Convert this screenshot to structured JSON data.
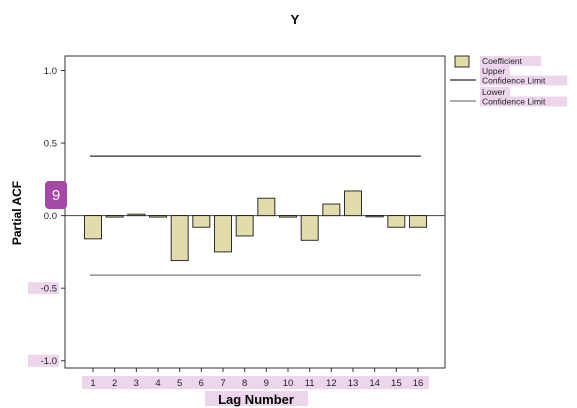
{
  "annotation_badge": "9",
  "colors": {
    "bar_fill": "#e2dcad",
    "bar_stroke": "#1a1a1a",
    "upper_line": "#2b2b2b",
    "lower_line": "#7a7a7a",
    "label_highlight": "#edd6ec"
  },
  "chart_data": {
    "type": "bar",
    "title": "Y",
    "xlabel": "Lag Number",
    "ylabel": "Partial ACF",
    "categories": [
      "1",
      "2",
      "3",
      "4",
      "5",
      "6",
      "7",
      "8",
      "9",
      "10",
      "11",
      "12",
      "13",
      "14",
      "15",
      "16"
    ],
    "series": [
      {
        "name": "Coefficient",
        "values": [
          -0.16,
          -0.01,
          0.01,
          -0.01,
          -0.31,
          -0.08,
          -0.25,
          -0.14,
          0.12,
          -0.01,
          -0.17,
          0.08,
          0.17,
          0.0,
          -0.08,
          -0.08
        ]
      }
    ],
    "confidence_limits": {
      "upper": 0.41,
      "lower": -0.41
    },
    "ylim": [
      -1.05,
      1.1
    ],
    "yticks": [
      "1.0",
      "0.5",
      "0.0",
      "-0.5",
      "-1.0"
    ],
    "ytick_values": [
      1.0,
      0.5,
      0.0,
      -0.5,
      -1.0
    ],
    "legend": {
      "placement": "right",
      "entries": [
        {
          "kind": "box",
          "label": [
            "Coefficient"
          ]
        },
        {
          "kind": "line",
          "label": [
            "Upper",
            "Confidence Limit"
          ]
        },
        {
          "kind": "line",
          "label": [
            "Lower",
            "Confidence Limit"
          ]
        }
      ]
    },
    "grid": false
  }
}
